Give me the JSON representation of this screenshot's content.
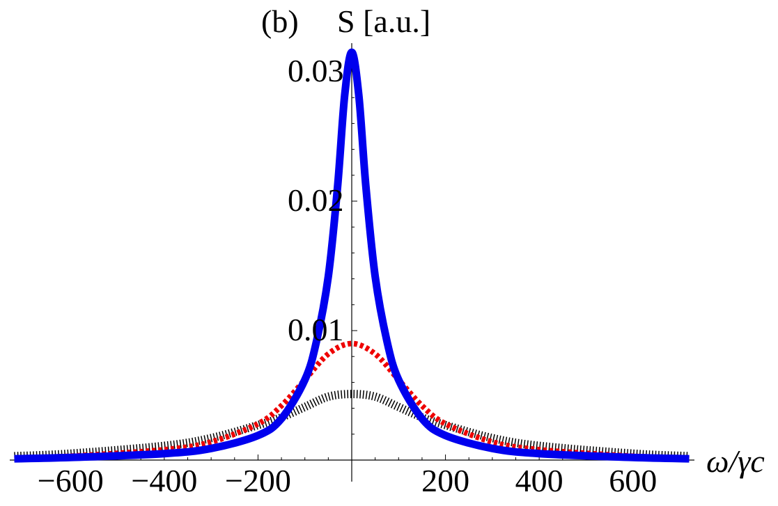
{
  "chart_data": {
    "type": "line",
    "panel_label": "(b)",
    "ylabel": "S [a.u.]",
    "xlabel": "ω/γc",
    "xlim": [
      -720,
      720
    ],
    "ylim": [
      0,
      0.0315
    ],
    "x_ticks": [
      {
        "value": -600,
        "label": "−600"
      },
      {
        "value": -400,
        "label": "−400"
      },
      {
        "value": -200,
        "label": "−200"
      },
      {
        "value": 200,
        "label": "200"
      },
      {
        "value": 400,
        "label": "400"
      },
      {
        "value": 600,
        "label": "600"
      }
    ],
    "y_ticks": [
      {
        "value": 0.01,
        "label": "0.01"
      },
      {
        "value": 0.02,
        "label": "0.02"
      },
      {
        "value": 0.03,
        "label": "0.03"
      }
    ],
    "series": [
      {
        "style": "solid",
        "color": "#0000ee",
        "x": [
          -720,
          -600,
          -400,
          -300,
          -200,
          -150,
          -100,
          -75,
          -50,
          -30,
          -15,
          0,
          15,
          30,
          50,
          75,
          100,
          150,
          200,
          300,
          400,
          600,
          720
        ],
        "y": [
          0.0001,
          0.0002,
          0.0005,
          0.0009,
          0.0019,
          0.0032,
          0.0062,
          0.0092,
          0.0142,
          0.0212,
          0.0282,
          0.0315,
          0.0282,
          0.0212,
          0.0142,
          0.0092,
          0.0062,
          0.0032,
          0.0019,
          0.0009,
          0.0005,
          0.0002,
          0.0001
        ]
      },
      {
        "style": "dashed",
        "color": "#ee0000",
        "x": [
          -720,
          -600,
          -400,
          -300,
          -200,
          -150,
          -100,
          -50,
          0,
          50,
          100,
          150,
          200,
          300,
          400,
          600,
          720
        ],
        "y": [
          0.0001,
          0.0003,
          0.0008,
          0.0014,
          0.0028,
          0.0042,
          0.0062,
          0.0082,
          0.009,
          0.0082,
          0.0062,
          0.0042,
          0.0028,
          0.0014,
          0.0008,
          0.0003,
          0.0001
        ]
      },
      {
        "style": "dotted",
        "color": "#000000",
        "x": [
          -720,
          -600,
          -400,
          -300,
          -200,
          -150,
          -100,
          -50,
          0,
          50,
          100,
          150,
          200,
          300,
          400,
          600,
          720
        ],
        "y": [
          0.0003,
          0.0005,
          0.0011,
          0.0017,
          0.0027,
          0.0033,
          0.0041,
          0.0049,
          0.0051,
          0.0049,
          0.0041,
          0.0033,
          0.0027,
          0.0017,
          0.0011,
          0.0005,
          0.0003
        ]
      }
    ]
  }
}
